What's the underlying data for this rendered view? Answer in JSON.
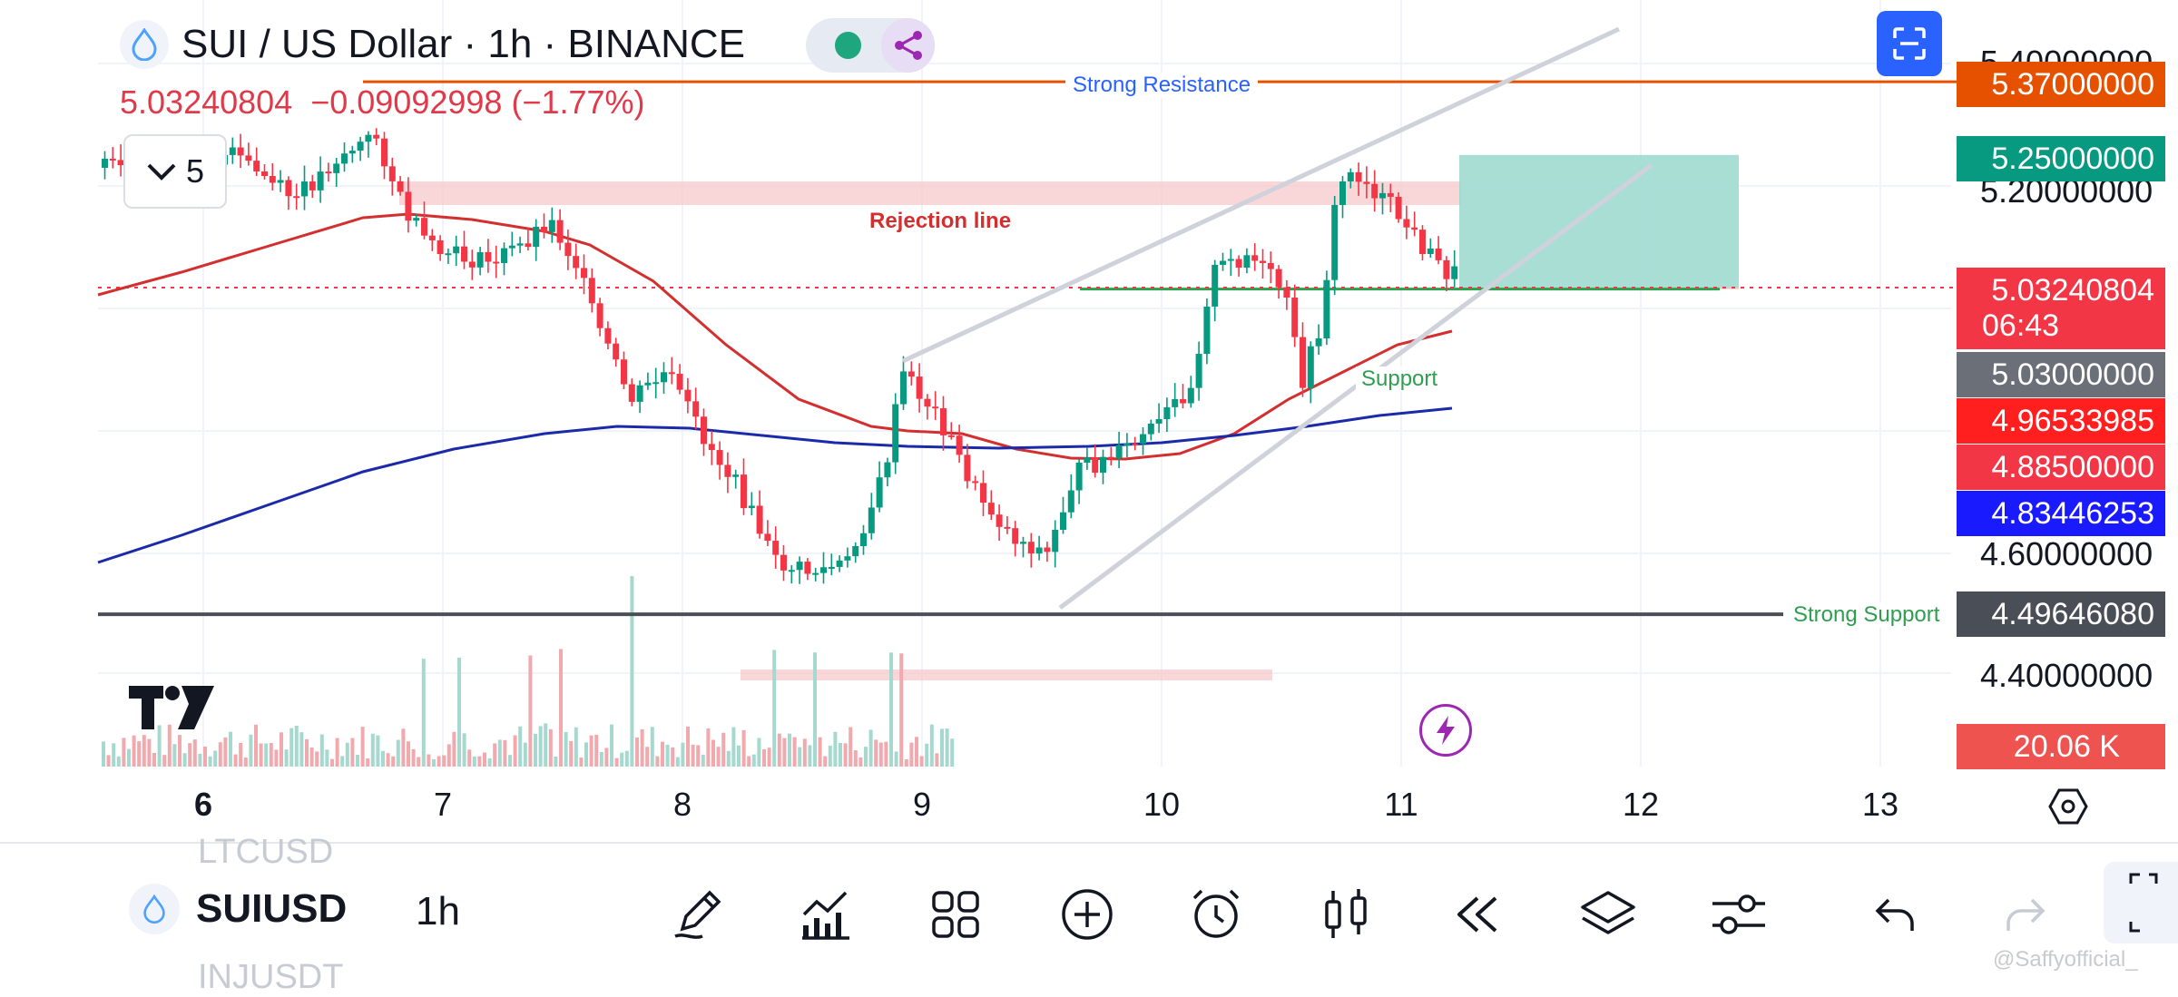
{
  "header": {
    "title": "SUI / US Dollar · 1h · BINANCE",
    "last_price": "5.03240804",
    "change": "−0.09092998 (−1.77%)",
    "collapse_label": "5"
  },
  "chart_data": {
    "type": "candlestick",
    "x_ticks": [
      "6",
      "7",
      "8",
      "9",
      "10",
      "11",
      "12",
      "13"
    ],
    "y_ticks": [
      "5.40000000",
      "5.20000000",
      "4.60000000",
      "4.40000000"
    ],
    "ylim": [
      4.3,
      5.48
    ],
    "price_badges": [
      {
        "value": "5.37000000",
        "color": "#e65100"
      },
      {
        "value": "5.25000000",
        "color": "#089981"
      },
      {
        "value": "5.03240804",
        "color": "#f23645",
        "timer": "06:43"
      },
      {
        "value": "5.03000000",
        "color": "#6b6f78"
      },
      {
        "value": "4.96533985",
        "color": "#ff1f1f"
      },
      {
        "value": "4.88500000",
        "color": "#f23645"
      },
      {
        "value": "4.83446253",
        "color": "#1a1aff"
      },
      {
        "value": "4.49646080",
        "color": "#4a4e56"
      }
    ],
    "volume_badge": "20.06 K",
    "annotations": {
      "strong_resistance": "Strong Resistance",
      "rejection_line": "Rejection line",
      "support": "Support",
      "strong_support": "Strong Support"
    },
    "levels": {
      "strong_resistance": 5.37,
      "strong_support": 4.4965,
      "support": 5.03,
      "current": 5.0324,
      "target": 5.25
    }
  },
  "bottom": {
    "symbol": "SUIUSD",
    "interval": "1h",
    "ghost_prev": "LTCUSD",
    "ghost_next": "INJUSDT",
    "watermark": "@Saffyofficial_"
  },
  "icons": {
    "draw": "pencil-icon",
    "indicators": "indicators-icon",
    "templates": "grid-icon",
    "add": "plus-circle-icon",
    "alert": "alarm-icon",
    "chart_type": "candles-icon",
    "replay": "rewind-icon",
    "layers": "layers-icon",
    "settings": "sliders-icon",
    "undo": "undo-icon",
    "redo": "redo-icon"
  }
}
